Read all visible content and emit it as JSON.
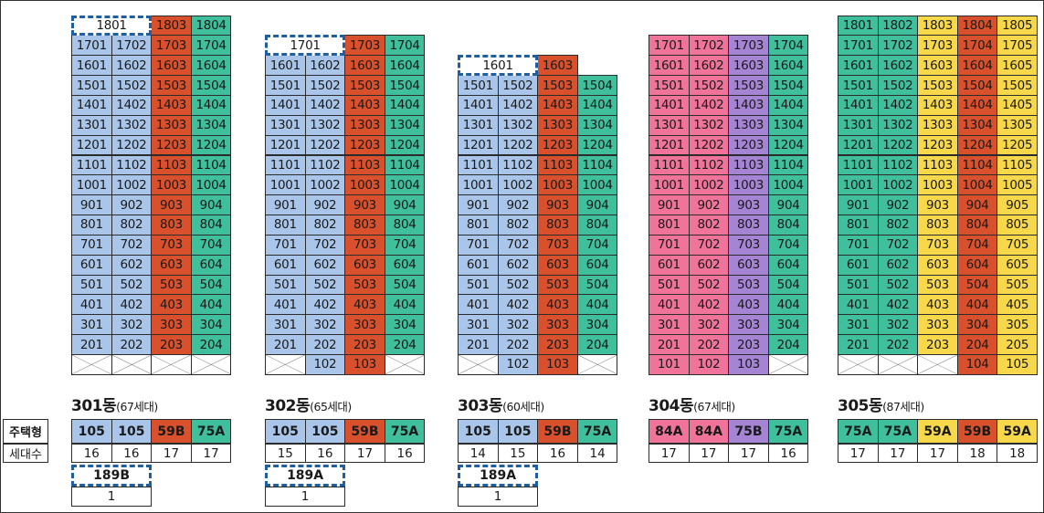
{
  "colors": {
    "105": "#a9c6ea",
    "189A": "#a9c6ea",
    "189B": "#a9c6ea",
    "59B": "#d9502d",
    "75A": "#3fbf9b",
    "84A": "#f0739a",
    "75B": "#a584d4",
    "59A": "#f7d84a"
  },
  "labels": {
    "type": "주택형",
    "count": "세대수"
  },
  "buildings": [
    {
      "id": "301",
      "title": "301동",
      "subtitle": "(67세대)",
      "types": [
        "105",
        "105",
        "59B",
        "75A"
      ],
      "counts": [
        "16",
        "16",
        "17",
        "17"
      ],
      "extra": {
        "type": "189B",
        "count": "1"
      },
      "topFloor": 18,
      "columns": [
        {
          "suffix": "01",
          "type": "105",
          "bottom": 2,
          "top": 17
        },
        {
          "suffix": "02",
          "type": "105",
          "bottom": 2,
          "top": 17
        },
        {
          "suffix": "03",
          "type": "59B",
          "bottom": 2,
          "top": 18
        },
        {
          "suffix": "04",
          "type": "75A",
          "bottom": 2,
          "top": 18
        }
      ],
      "penthouse": {
        "label": "1801",
        "floor": 18,
        "start": 0,
        "span": 2
      }
    },
    {
      "id": "302",
      "title": "302동",
      "subtitle": "(65세대)",
      "types": [
        "105",
        "105",
        "59B",
        "75A"
      ],
      "counts": [
        "15",
        "16",
        "17",
        "16"
      ],
      "extra": {
        "type": "189A",
        "count": "1"
      },
      "topFloor": 17,
      "columns": [
        {
          "suffix": "01",
          "type": "105",
          "bottom": 2,
          "top": 16
        },
        {
          "suffix": "02",
          "type": "105",
          "bottom": 1,
          "top": 16
        },
        {
          "suffix": "03",
          "type": "59B",
          "bottom": 1,
          "top": 17
        },
        {
          "suffix": "04",
          "type": "75A",
          "bottom": 2,
          "top": 17
        }
      ],
      "penthouse": {
        "label": "1701",
        "floor": 17,
        "start": 0,
        "span": 2
      }
    },
    {
      "id": "303",
      "title": "303동",
      "subtitle": "(60세대)",
      "types": [
        "105",
        "105",
        "59B",
        "75A"
      ],
      "counts": [
        "14",
        "15",
        "16",
        "14"
      ],
      "extra": {
        "type": "189A",
        "count": "1"
      },
      "topFloor": 16,
      "columns": [
        {
          "suffix": "01",
          "type": "105",
          "bottom": 2,
          "top": 15
        },
        {
          "suffix": "02",
          "type": "105",
          "bottom": 1,
          "top": 15
        },
        {
          "suffix": "03",
          "type": "59B",
          "bottom": 1,
          "top": 16
        },
        {
          "suffix": "04",
          "type": "75A",
          "bottom": 2,
          "top": 15
        }
      ],
      "penthouse": {
        "label": "1601",
        "floor": 16,
        "start": 0,
        "span": 2
      }
    },
    {
      "id": "304",
      "title": "304동",
      "subtitle": "(67세대)",
      "types": [
        "84A",
        "84A",
        "75B",
        "75A"
      ],
      "counts": [
        "17",
        "17",
        "17",
        "16"
      ],
      "extra": null,
      "topFloor": 17,
      "columns": [
        {
          "suffix": "01",
          "type": "84A",
          "bottom": 1,
          "top": 17
        },
        {
          "suffix": "02",
          "type": "84A",
          "bottom": 1,
          "top": 17
        },
        {
          "suffix": "03",
          "type": "75B",
          "bottom": 1,
          "top": 17
        },
        {
          "suffix": "04",
          "type": "75A",
          "bottom": 2,
          "top": 17
        }
      ],
      "penthouse": null
    },
    {
      "id": "305",
      "title": "305동",
      "subtitle": "(87세대)",
      "types": [
        "75A",
        "75A",
        "59A",
        "59B",
        "59A"
      ],
      "counts": [
        "17",
        "17",
        "17",
        "18",
        "18"
      ],
      "extra": null,
      "topFloor": 18,
      "columns": [
        {
          "suffix": "01",
          "type": "75A",
          "bottom": 2,
          "top": 18
        },
        {
          "suffix": "02",
          "type": "75A",
          "bottom": 2,
          "top": 18
        },
        {
          "suffix": "03",
          "type": "59A",
          "bottom": 2,
          "top": 18
        },
        {
          "suffix": "04",
          "type": "59B",
          "bottom": 1,
          "top": 18
        },
        {
          "suffix": "05",
          "type": "59A",
          "bottom": 1,
          "top": 18
        }
      ],
      "penthouse": null
    }
  ]
}
